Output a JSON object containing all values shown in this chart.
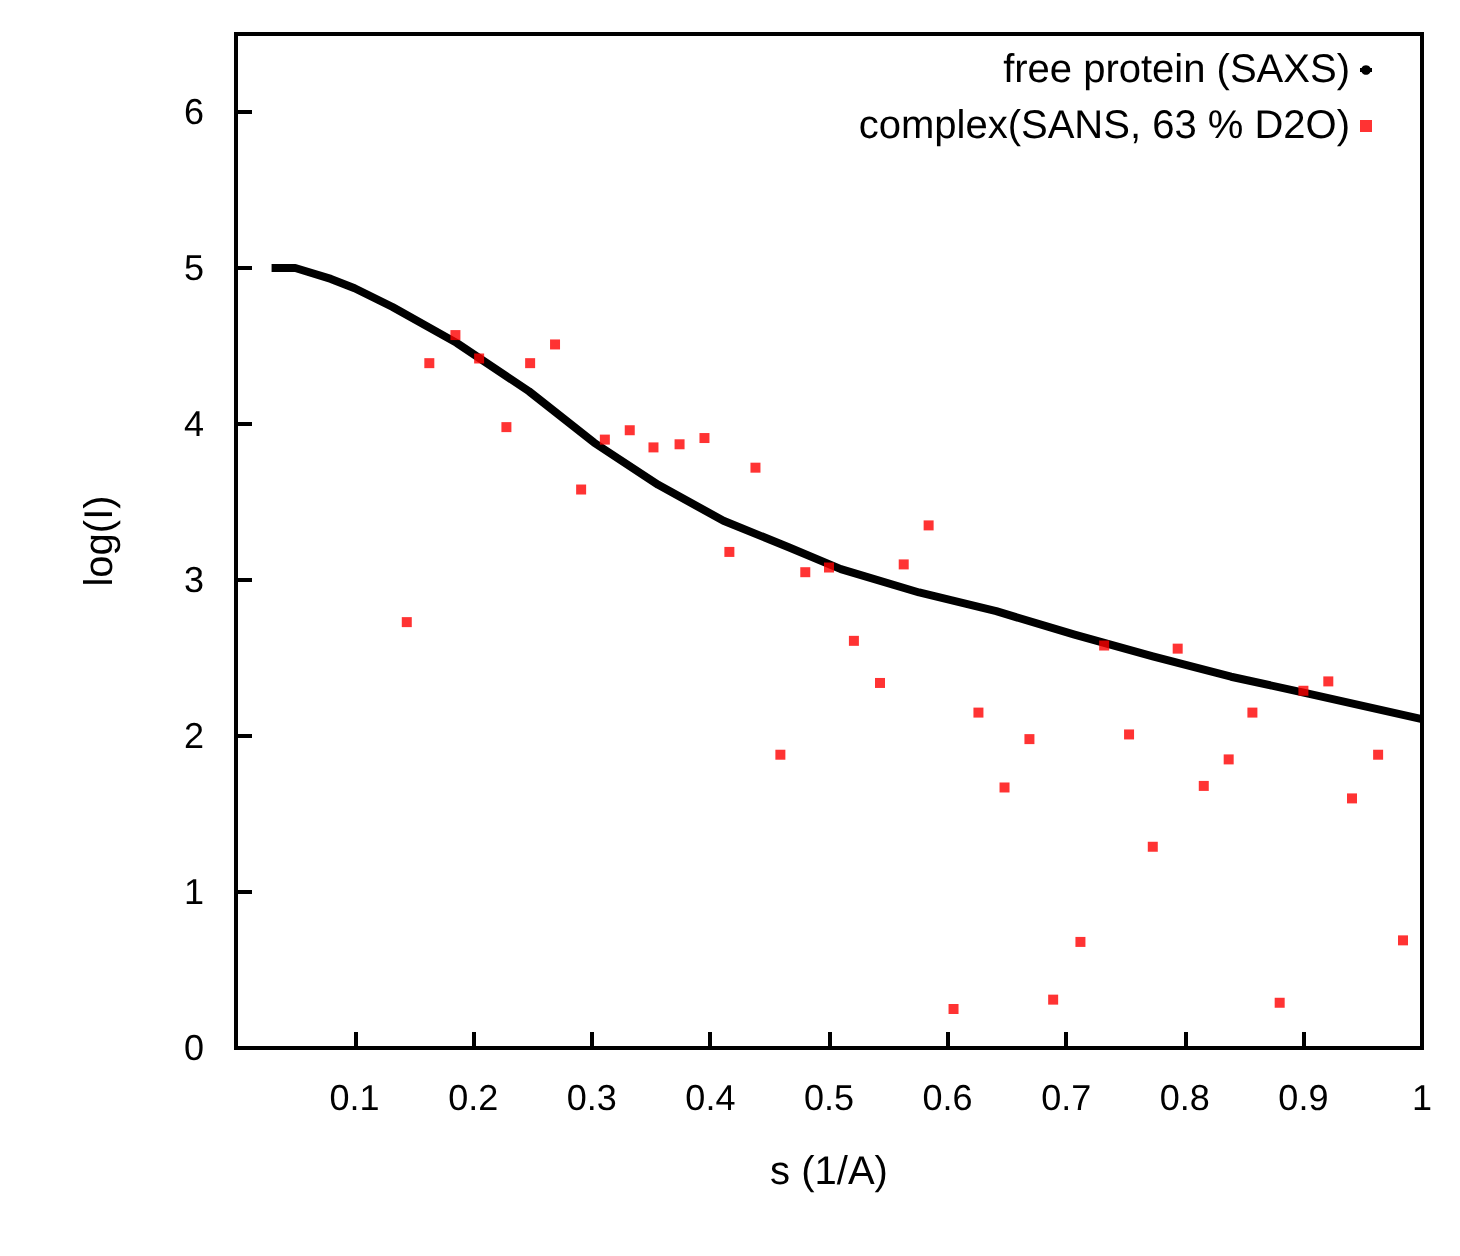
{
  "chart_data": {
    "type": "scatter",
    "xlabel": "s (1/A)",
    "ylabel": "log(I)",
    "xlim": [
      0,
      1
    ],
    "xticks": [
      0.1,
      0.2,
      0.3,
      0.4,
      0.5,
      0.6,
      0.7,
      0.8,
      0.9,
      1
    ],
    "ylim": [
      0,
      6.5
    ],
    "yticks": [
      0,
      1,
      2,
      3,
      4,
      5,
      6
    ],
    "grid": false,
    "legend": "top right",
    "series": [
      {
        "name": "free protein (SAXS)",
        "type": "line",
        "color": "#000000",
        "x": [
          0.03,
          0.05,
          0.08,
          0.1,
          0.132,
          0.186,
          0.247,
          0.302,
          0.356,
          0.411,
          0.466,
          0.51,
          0.576,
          0.641,
          0.707,
          0.773,
          0.839,
          0.905,
          0.999
        ],
        "values": [
          5.0,
          5.0,
          4.93,
          4.87,
          4.75,
          4.52,
          4.21,
          3.88,
          3.61,
          3.38,
          3.21,
          3.07,
          2.92,
          2.8,
          2.65,
          2.51,
          2.38,
          2.27,
          2.11
        ]
      },
      {
        "name": "complex(SANS, 63 % D2O)",
        "color": "#ff0000",
        "marker": "square",
        "x": [
          0.144,
          0.163,
          0.185,
          0.205,
          0.228,
          0.248,
          0.269,
          0.291,
          0.311,
          0.332,
          0.352,
          0.374,
          0.395,
          0.416,
          0.438,
          0.459,
          0.48,
          0.5,
          0.521,
          0.543,
          0.563,
          0.584,
          0.605,
          0.626,
          0.648,
          0.669,
          0.689,
          0.712,
          0.732,
          0.753,
          0.773,
          0.794,
          0.816,
          0.837,
          0.857,
          0.88,
          0.9,
          0.921,
          0.941,
          0.963,
          0.984
        ],
        "values": [
          2.73,
          4.39,
          4.57,
          4.42,
          3.98,
          4.39,
          4.51,
          3.58,
          3.9,
          3.96,
          3.85,
          3.87,
          3.91,
          3.18,
          3.72,
          1.88,
          3.05,
          3.08,
          2.61,
          2.34,
          3.1,
          3.35,
          0.25,
          2.15,
          1.67,
          1.98,
          0.31,
          0.68,
          2.58,
          2.01,
          1.29,
          2.56,
          1.68,
          1.85,
          2.15,
          0.29,
          2.29,
          2.35,
          1.6,
          1.88,
          0.69
        ]
      }
    ]
  }
}
